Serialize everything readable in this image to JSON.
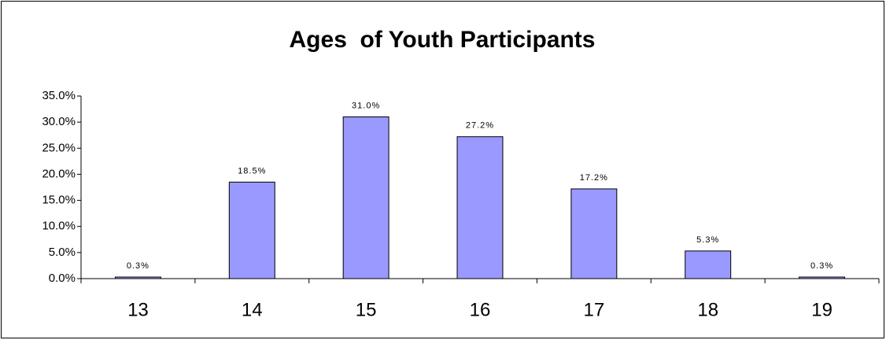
{
  "chart_data": {
    "type": "bar",
    "title": "Ages  of Youth Participants",
    "categories": [
      "13",
      "14",
      "15",
      "16",
      "17",
      "18",
      "19"
    ],
    "values": [
      0.3,
      18.5,
      31.0,
      27.2,
      17.2,
      5.3,
      0.3
    ],
    "value_labels": [
      "0.3%",
      "18.5%",
      "31.0%",
      "27.2%",
      "17.2%",
      "5.3%",
      "0.3%"
    ],
    "color": "#9999ff",
    "ylim": [
      0,
      35
    ],
    "yticks": [
      {
        "value": 0,
        "label": "0.0%"
      },
      {
        "value": 5,
        "label": "5.0%"
      },
      {
        "value": 10,
        "label": "10.0%"
      },
      {
        "value": 15,
        "label": "15.0%"
      },
      {
        "value": 20,
        "label": "20.0%"
      },
      {
        "value": 25,
        "label": "25.0%"
      },
      {
        "value": 30,
        "label": "30.0%"
      },
      {
        "value": 35,
        "label": "35.0%"
      }
    ],
    "grid": false
  }
}
